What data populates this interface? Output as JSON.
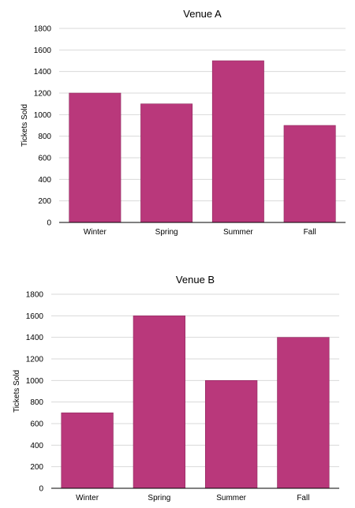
{
  "colors": {
    "bar": "#b9387b",
    "bar_edge": "#8f2a5e",
    "grid": "#d9d9d9",
    "axis": "#000000"
  },
  "chart_data": [
    {
      "type": "bar",
      "title": "Venue A",
      "xlabel": "",
      "ylabel": "Tickets Sold",
      "categories": [
        "Winter",
        "Spring",
        "Summer",
        "Fall"
      ],
      "values": [
        1200,
        1100,
        1500,
        900
      ],
      "ylim": [
        0,
        1800
      ],
      "yticks": [
        0,
        200,
        400,
        600,
        800,
        1000,
        1200,
        1400,
        1600,
        1800
      ],
      "grid": true,
      "legend": "none"
    },
    {
      "type": "bar",
      "title": "Venue B",
      "xlabel": "",
      "ylabel": "Tickets Sold",
      "categories": [
        "Winter",
        "Spring",
        "Summer",
        "Fall"
      ],
      "values": [
        700,
        1600,
        1000,
        1400
      ],
      "ylim": [
        0,
        1800
      ],
      "yticks": [
        0,
        200,
        400,
        600,
        800,
        1000,
        1200,
        1400,
        1600,
        1800
      ],
      "grid": true,
      "legend": "none"
    }
  ]
}
